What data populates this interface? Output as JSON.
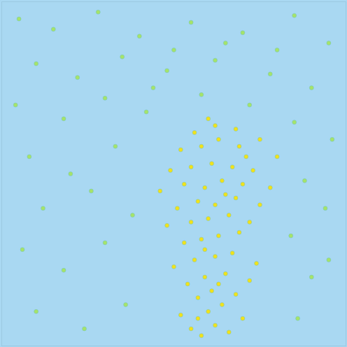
{
  "chart_data": {
    "type": "scatter",
    "tick_labels": false,
    "grid": false,
    "xlim": [
      0,
      100
    ],
    "ylim": [
      0,
      100
    ],
    "x": [
      55,
      58,
      62,
      66,
      52,
      60,
      64,
      70,
      57,
      61,
      68,
      54,
      59,
      65,
      72,
      50,
      56,
      62,
      67,
      74,
      53,
      58,
      63,
      69,
      48,
      55,
      60,
      66,
      72,
      51,
      57,
      62,
      68,
      75,
      46,
      53,
      59,
      64,
      70,
      78,
      49,
      55,
      61,
      67,
      73,
      80,
      52,
      58,
      63,
      69,
      75,
      56,
      62,
      68,
      60,
      57,
      63,
      59,
      65,
      71,
      5,
      15,
      28,
      40,
      55,
      70,
      85,
      95,
      10,
      22,
      35,
      48,
      62,
      78,
      90,
      4,
      18,
      30,
      42,
      85,
      96,
      8,
      20,
      33,
      88,
      94,
      12,
      26,
      38,
      84,
      6,
      18,
      30,
      90,
      36,
      10,
      24,
      86,
      95,
      44,
      58,
      72,
      80,
      65,
      50
    ],
    "values": [
      5,
      3,
      6,
      4,
      9,
      10,
      12,
      8,
      14,
      16,
      15,
      18,
      20,
      21,
      19,
      23,
      25,
      26,
      27,
      24,
      30,
      31,
      32,
      33,
      35,
      36,
      37,
      38,
      36,
      40,
      42,
      41,
      43,
      41,
      45,
      47,
      46,
      48,
      47,
      46,
      51,
      52,
      53,
      52,
      51,
      55,
      57,
      58,
      60,
      58,
      60,
      62,
      64,
      63,
      66,
      8,
      18,
      28,
      44,
      55,
      95,
      92,
      97,
      90,
      94,
      91,
      96,
      88,
      82,
      78,
      84,
      80,
      83,
      79,
      75,
      70,
      66,
      72,
      68,
      65,
      60,
      55,
      50,
      58,
      48,
      40,
      40,
      45,
      38,
      32,
      28,
      22,
      30,
      20,
      12,
      10,
      5,
      8,
      25,
      75,
      73,
      70,
      86,
      88,
      86
    ],
    "colors": [
      "#f2e21a",
      "#f2e21a",
      "#f2e21a",
      "#f2e21a",
      "#f2e21a",
      "#f2e21a",
      "#f2e21a",
      "#f2e21a",
      "#f2e21a",
      "#f2e21a",
      "#f2e21a",
      "#f2e21a",
      "#f2e21a",
      "#f2e21a",
      "#f2e21a",
      "#f2e21a",
      "#f2e21a",
      "#f2e21a",
      "#f2e21a",
      "#f2e21a",
      "#f2e21a",
      "#f2e21a",
      "#f2e21a",
      "#f2e21a",
      "#f2e21a",
      "#f2e21a",
      "#f2e21a",
      "#f2e21a",
      "#f2e21a",
      "#f2e21a",
      "#f2e21a",
      "#f2e21a",
      "#f2e21a",
      "#f2e21a",
      "#f2e21a",
      "#f2e21a",
      "#f2e21a",
      "#f2e21a",
      "#f2e21a",
      "#f2e21a",
      "#f2e21a",
      "#f2e21a",
      "#f2e21a",
      "#f2e21a",
      "#f2e21a",
      "#f2e21a",
      "#f2e21a",
      "#f2e21a",
      "#f2e21a",
      "#f2e21a",
      "#f2e21a",
      "#f2e21a",
      "#f2e21a",
      "#f2e21a",
      "#f2e21a",
      "#f2e21a",
      "#f2e21a",
      "#f2e21a",
      "#f2e21a",
      "#f2e21a",
      "#a6e36a",
      "#a6e36a",
      "#a6e36a",
      "#a6e36a",
      "#a6e36a",
      "#a6e36a",
      "#a6e36a",
      "#a6e36a",
      "#a6e36a",
      "#a6e36a",
      "#a6e36a",
      "#a6e36a",
      "#a6e36a",
      "#a6e36a",
      "#a6e36a",
      "#a6e36a",
      "#a6e36a",
      "#a6e36a",
      "#a6e36a",
      "#a6e36a",
      "#a6e36a",
      "#a6e36a",
      "#a6e36a",
      "#a6e36a",
      "#a6e36a",
      "#a6e36a",
      "#a6e36a",
      "#a6e36a",
      "#a6e36a",
      "#a6e36a",
      "#a6e36a",
      "#a6e36a",
      "#a6e36a",
      "#a6e36a",
      "#a6e36a",
      "#a6e36a",
      "#a6e36a",
      "#a6e36a",
      "#a6e36a",
      "#a6e36a",
      "#a6e36a",
      "#a6e36a",
      "#a6e36a",
      "#a6e36a",
      "#a6e36a"
    ]
  }
}
